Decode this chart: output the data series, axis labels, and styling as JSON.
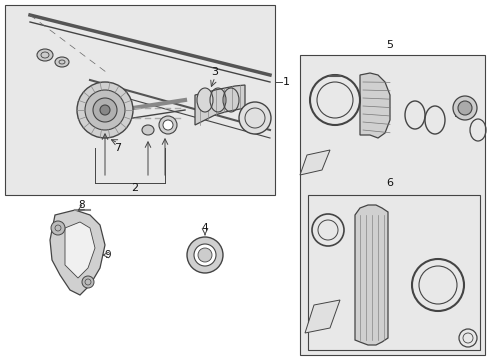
{
  "bg_color": "#ffffff",
  "lc": "#444444",
  "box1_fc": "#e8e8e8",
  "box5_fc": "#e8e8e8",
  "box6_fc": "#e8e8e8"
}
